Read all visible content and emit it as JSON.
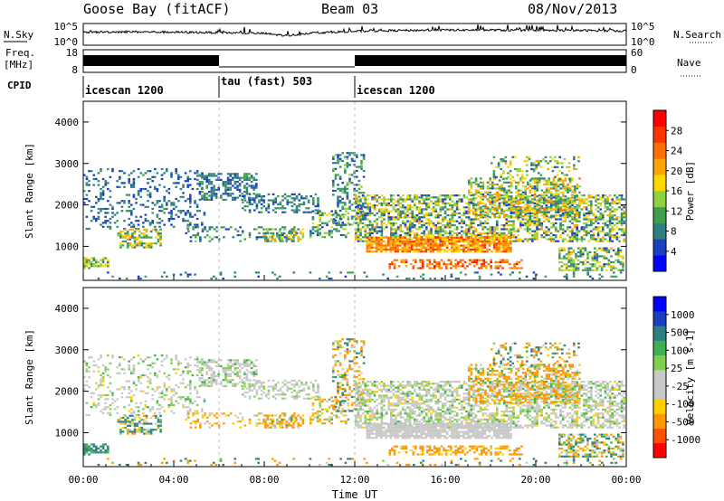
{
  "header": {
    "station": "Goose Bay (fitACF)",
    "beam": "Beam 03",
    "date": "08/Nov/2013"
  },
  "noise_panel": {
    "left_label": "N.Sky",
    "right_label": "N.Search",
    "left_ticks": [
      "10^5",
      "10^0"
    ],
    "right_ticks": [
      "10^5",
      "10^0"
    ]
  },
  "freq_panel": {
    "left_label_1": "Freq.",
    "left_label_2": "[MHz]",
    "right_label": "Nave",
    "left_ticks": [
      "18",
      "8"
    ],
    "right_ticks": [
      "60",
      "0"
    ]
  },
  "cpid": {
    "label": "CPID",
    "segments": [
      {
        "label": "icescan 1200",
        "start_h": 0,
        "end_h": 6
      },
      {
        "label": "tau (fast) 503",
        "start_h": 6,
        "end_h": 12
      },
      {
        "label": "icescan 1200",
        "start_h": 12,
        "end_h": 24
      }
    ]
  },
  "power_colorbar": {
    "label": "Power [dB]",
    "ticks": [
      "28",
      "24",
      "20",
      "16",
      "12",
      "8",
      "4"
    ],
    "colors": [
      "#0000ff",
      "#1a3fbf",
      "#2e7f7f",
      "#3f9f4f",
      "#8fd23f",
      "#ffd700",
      "#ffa500",
      "#ff7000",
      "#ff3300",
      "#ff0000"
    ]
  },
  "velocity_colorbar": {
    "label": "Velocity [m s-1]",
    "ticks": [
      "1000",
      "500",
      "100",
      "25",
      "-25",
      "-100",
      "-500",
      "-1000"
    ],
    "colors": [
      "#ff0000",
      "#ff5000",
      "#ff9800",
      "#ffd000",
      "#c8c8c8",
      "#c8c8c8",
      "#80d050",
      "#3faf4f",
      "#2e7f7f",
      "#1a40c0",
      "#0000ff"
    ]
  },
  "axes": {
    "ylabel": "Slant Range [km]",
    "xlabel": "Time UT",
    "yticks": [
      "4000",
      "3000",
      "2000",
      "1000"
    ],
    "xticks": [
      "00:00",
      "04:00",
      "08:00",
      "12:00",
      "16:00",
      "20:00",
      "00:00"
    ]
  },
  "chart_data": {
    "type": "heatmap",
    "title": "Goose Bay (fitACF)",
    "xlabel": "Time UT",
    "ylabel": "Slant Range [km]",
    "x_range_h": [
      0,
      24
    ],
    "y_range_km": [
      180,
      4500
    ],
    "scatter_regions": [
      {
        "t": [
          0.0,
          5.5
        ],
        "r": [
          1400,
          2900
        ],
        "density": 0.22,
        "p": [
          4,
          10
        ],
        "v": [
          -60,
          60
        ]
      },
      {
        "t": [
          1.5,
          3.5
        ],
        "r": [
          950,
          1450
        ],
        "density": 0.55,
        "p": [
          8,
          22
        ],
        "v": [
          -150,
          250
        ]
      },
      {
        "t": [
          0.0,
          1.2
        ],
        "r": [
          450,
          750
        ],
        "density": 0.55,
        "p": [
          8,
          20
        ],
        "v": [
          50,
          300
        ]
      },
      {
        "t": [
          5.0,
          7.8
        ],
        "r": [
          2100,
          2800
        ],
        "density": 0.45,
        "p": [
          4,
          12
        ],
        "v": [
          -40,
          60
        ]
      },
      {
        "t": [
          4.5,
          9.5
        ],
        "r": [
          1100,
          1500
        ],
        "density": 0.3,
        "p": [
          4,
          14
        ],
        "v": [
          -200,
          40
        ]
      },
      {
        "t": [
          7.0,
          10.5
        ],
        "r": [
          1800,
          2300
        ],
        "density": 0.38,
        "p": [
          4,
          12
        ],
        "v": [
          -40,
          40
        ]
      },
      {
        "t": [
          8.0,
          9.8
        ],
        "r": [
          1100,
          1450
        ],
        "density": 0.45,
        "p": [
          8,
          22
        ],
        "v": [
          -300,
          100
        ]
      },
      {
        "t": [
          10.0,
          11.8
        ],
        "r": [
          1200,
          1900
        ],
        "density": 0.35,
        "p": [
          4,
          18
        ],
        "v": [
          -200,
          60
        ]
      },
      {
        "t": [
          11.0,
          12.5
        ],
        "r": [
          1500,
          3300
        ],
        "density": 0.35,
        "p": [
          4,
          14
        ],
        "v": [
          -300,
          200
        ]
      },
      {
        "t": [
          12.0,
          24.0
        ],
        "r": [
          1100,
          2300
        ],
        "density": 0.55,
        "p": [
          4,
          22
        ],
        "v": [
          -60,
          60
        ]
      },
      {
        "t": [
          12.5,
          19.0
        ],
        "r": [
          850,
          1250
        ],
        "density": 0.85,
        "p": [
          16,
          28
        ],
        "v": [
          -25,
          25
        ]
      },
      {
        "t": [
          13.5,
          19.5
        ],
        "r": [
          450,
          700
        ],
        "density": 0.45,
        "p": [
          20,
          30
        ],
        "v": [
          -300,
          -50
        ]
      },
      {
        "t": [
          17.0,
          22.0
        ],
        "r": [
          1700,
          2700
        ],
        "density": 0.5,
        "p": [
          6,
          24
        ],
        "v": [
          -400,
          100
        ]
      },
      {
        "t": [
          18.0,
          22.0
        ],
        "r": [
          2600,
          3200
        ],
        "density": 0.25,
        "p": [
          6,
          20
        ],
        "v": [
          -300,
          300
        ]
      },
      {
        "t": [
          21.0,
          24.0
        ],
        "r": [
          400,
          1000
        ],
        "density": 0.5,
        "p": [
          6,
          20
        ],
        "v": [
          -200,
          200
        ]
      },
      {
        "t": [
          0.0,
          24.0
        ],
        "r": [
          200,
          400
        ],
        "density": 0.1,
        "p": [
          4,
          12
        ],
        "v": [
          -500,
          500
        ]
      }
    ],
    "noise_series": {
      "x_h": [
        0,
        2,
        4,
        6,
        8,
        9,
        10,
        12,
        14,
        16,
        18,
        20,
        22,
        24
      ],
      "y_log": [
        3.0,
        3.1,
        3.0,
        2.9,
        2.7,
        2.2,
        2.8,
        3.2,
        3.4,
        3.5,
        3.5,
        3.4,
        3.4,
        3.3
      ]
    },
    "nave_blocks": [
      {
        "start_h": 0.0,
        "end_h": 6.0,
        "level": "high"
      },
      {
        "start_h": 6.0,
        "end_h": 12.0,
        "level": "low"
      },
      {
        "start_h": 12.0,
        "end_h": 24.0,
        "level": "high"
      }
    ]
  }
}
